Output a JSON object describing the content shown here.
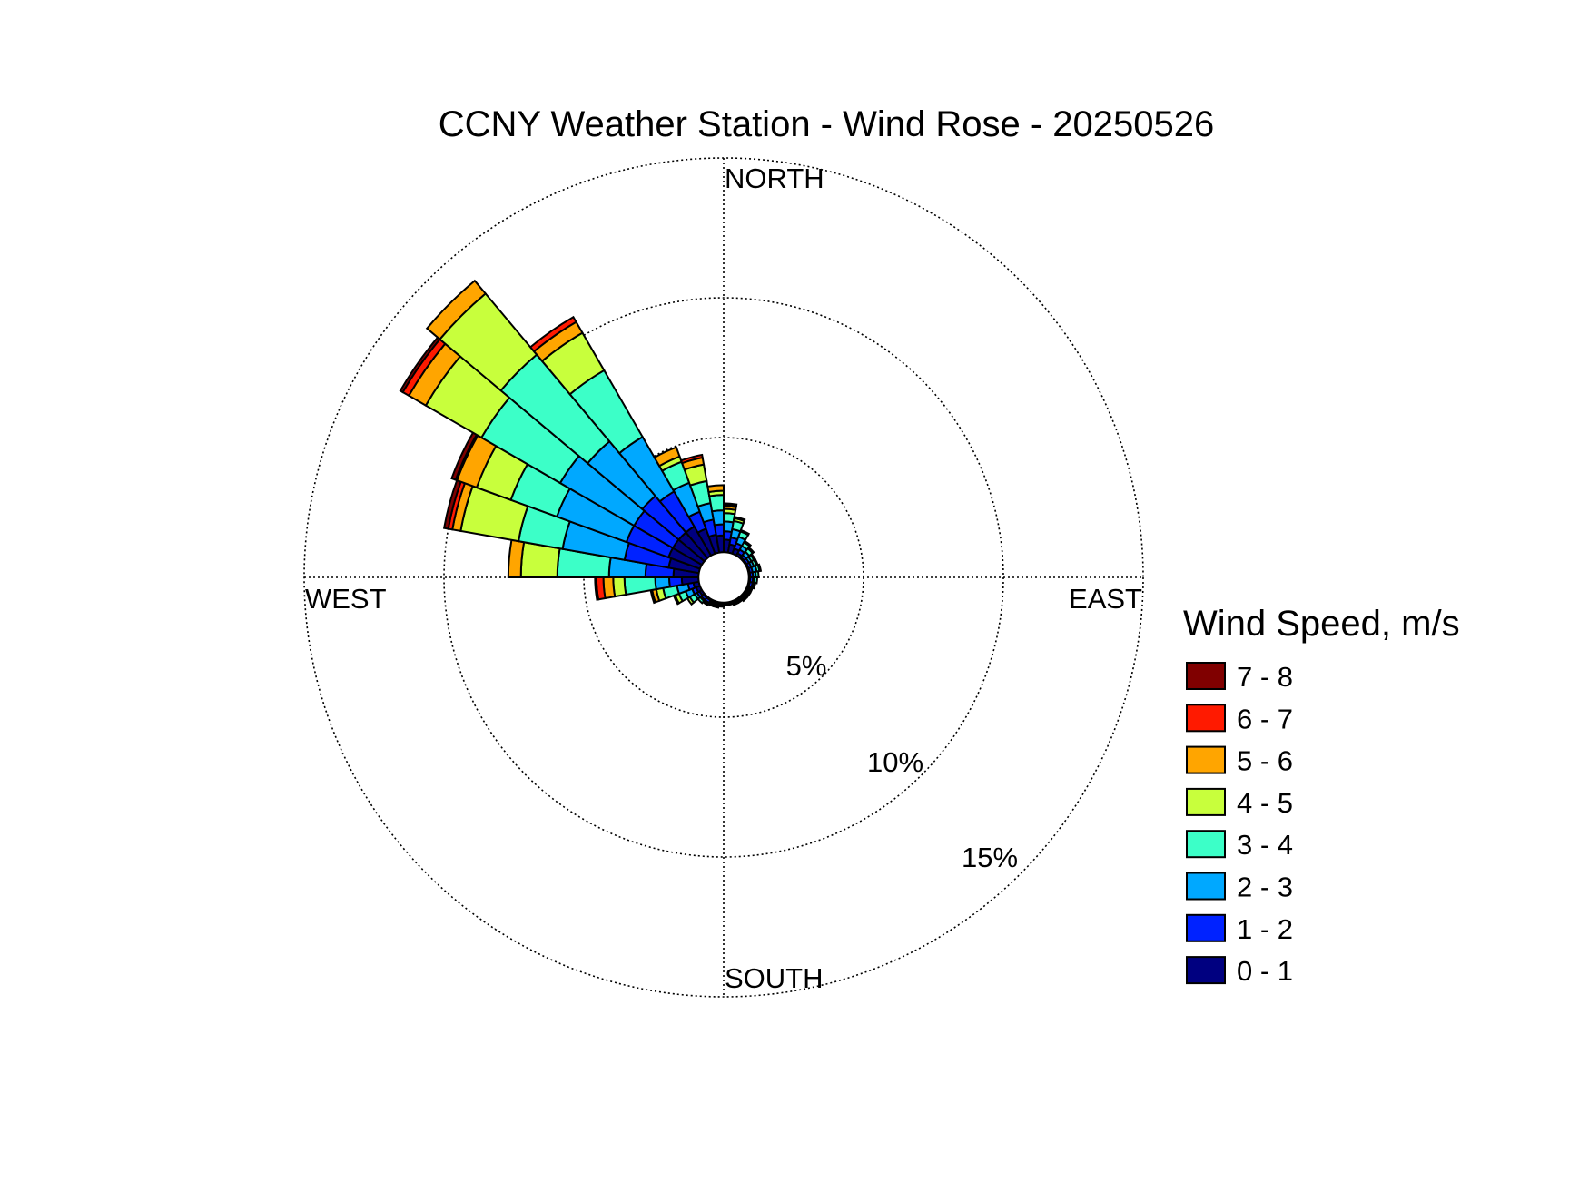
{
  "chart_data": {
    "type": "windrose",
    "title": "CCNY Weather Station - Wind Rose - 20250526",
    "direction_labels": {
      "north": "NORTH",
      "east": "EAST",
      "south": "SOUTH",
      "west": "WEST"
    },
    "ring_labels": [
      "5%",
      "10%",
      "15%"
    ],
    "rings": [
      5,
      10,
      15
    ],
    "rmax": 15,
    "legend": {
      "title": "Wind Speed, m/s",
      "placement": "right",
      "entries": [
        {
          "label": "7 - 8",
          "color": "#800000"
        },
        {
          "label": "6 - 7",
          "color": "#ff1a00"
        },
        {
          "label": "5 - 6",
          "color": "#ffa500"
        },
        {
          "label": "4 - 5",
          "color": "#c8ff3c"
        },
        {
          "label": "3 - 4",
          "color": "#3cffc8"
        },
        {
          "label": "2 - 3",
          "color": "#00a8ff"
        },
        {
          "label": "1 - 2",
          "color": "#0022ff"
        },
        {
          "label": "0 - 1",
          "color": "#000080"
        }
      ]
    },
    "bins": [
      "0 - 1",
      "1 - 2",
      "2 - 3",
      "3 - 4",
      "4 - 5",
      "5 - 6",
      "6 - 7",
      "7 - 8"
    ],
    "colors": [
      "#000080",
      "#0022ff",
      "#00a8ff",
      "#3cffc8",
      "#c8ff3c",
      "#ffa500",
      "#ff1a00",
      "#800000"
    ],
    "sector_width_deg": 10,
    "calm_percent": 0.9,
    "sectors": [
      {
        "direction": 5,
        "cumulative": [
          1.35,
          1.65,
          2.0,
          2.3,
          2.45,
          2.55,
          2.6,
          2.65
        ]
      },
      {
        "direction": 15,
        "cumulative": [
          1.2,
          1.45,
          1.75,
          2.05,
          2.15,
          2.2,
          2.2,
          2.2
        ]
      },
      {
        "direction": 25,
        "cumulative": [
          1.1,
          1.3,
          1.55,
          1.75,
          1.8,
          1.8,
          1.8,
          1.8
        ]
      },
      {
        "direction": 35,
        "cumulative": [
          1.0,
          1.15,
          1.3,
          1.45,
          1.5,
          1.5,
          1.5,
          1.5
        ]
      },
      {
        "direction": 45,
        "cumulative": [
          0.95,
          1.05,
          1.2,
          1.35,
          1.4,
          1.4,
          1.4,
          1.4
        ]
      },
      {
        "direction": 55,
        "cumulative": [
          0.95,
          1.05,
          1.15,
          1.25,
          1.3,
          1.3,
          1.3,
          1.3
        ]
      },
      {
        "direction": 65,
        "cumulative": [
          0.95,
          1.05,
          1.15,
          1.25,
          1.3,
          1.3,
          1.3,
          1.3
        ]
      },
      {
        "direction": 75,
        "cumulative": [
          0.95,
          1.05,
          1.2,
          1.3,
          1.35,
          1.35,
          1.35,
          1.35
        ]
      },
      {
        "direction": 85,
        "cumulative": [
          0.95,
          1.05,
          1.15,
          1.25,
          1.25,
          1.25,
          1.25,
          1.25
        ]
      },
      {
        "direction": 95,
        "cumulative": [
          0.95,
          1.05,
          1.1,
          1.2,
          1.2,
          1.2,
          1.2,
          1.2
        ]
      },
      {
        "direction": 105,
        "cumulative": [
          0.95,
          1.05,
          1.1,
          1.15,
          1.15,
          1.15,
          1.15,
          1.15
        ]
      },
      {
        "direction": 115,
        "cumulative": [
          0.95,
          1.0,
          1.05,
          1.1,
          1.1,
          1.1,
          1.1,
          1.1
        ]
      },
      {
        "direction": 125,
        "cumulative": [
          0.95,
          1.0,
          1.05,
          1.1,
          1.1,
          1.1,
          1.1,
          1.1
        ]
      },
      {
        "direction": 135,
        "cumulative": [
          0.95,
          1.0,
          1.05,
          1.1,
          1.1,
          1.1,
          1.1,
          1.1
        ]
      },
      {
        "direction": 145,
        "cumulative": [
          0.95,
          1.0,
          1.05,
          1.05,
          1.05,
          1.05,
          1.05,
          1.05
        ]
      },
      {
        "direction": 155,
        "cumulative": [
          0.95,
          1.0,
          1.05,
          1.05,
          1.05,
          1.05,
          1.05,
          1.05
        ]
      },
      {
        "direction": 165,
        "cumulative": [
          0.95,
          1.0,
          1.0,
          1.0,
          1.0,
          1.0,
          1.0,
          1.0
        ]
      },
      {
        "direction": 175,
        "cumulative": [
          0.95,
          1.0,
          1.0,
          1.0,
          1.0,
          1.0,
          1.0,
          1.0
        ]
      },
      {
        "direction": 185,
        "cumulative": [
          0.95,
          1.0,
          1.05,
          1.05,
          1.05,
          1.05,
          1.05,
          1.05
        ]
      },
      {
        "direction": 195,
        "cumulative": [
          0.95,
          1.0,
          1.05,
          1.1,
          1.1,
          1.1,
          1.1,
          1.1
        ]
      },
      {
        "direction": 205,
        "cumulative": [
          0.95,
          1.0,
          1.05,
          1.1,
          1.1,
          1.1,
          1.1,
          1.1
        ]
      },
      {
        "direction": 215,
        "cumulative": [
          0.95,
          1.05,
          1.1,
          1.15,
          1.15,
          1.15,
          1.15,
          1.15
        ]
      },
      {
        "direction": 225,
        "cumulative": [
          0.95,
          1.05,
          1.1,
          1.2,
          1.2,
          1.2,
          1.2,
          1.2
        ]
      },
      {
        "direction": 235,
        "cumulative": [
          1.0,
          1.1,
          1.2,
          1.4,
          1.5,
          1.5,
          1.5,
          1.5
        ]
      },
      {
        "direction": 245,
        "cumulative": [
          1.05,
          1.2,
          1.45,
          1.7,
          1.85,
          1.9,
          1.9,
          1.9
        ]
      },
      {
        "direction": 255,
        "cumulative": [
          1.1,
          1.3,
          1.7,
          2.2,
          2.45,
          2.6,
          2.65,
          2.65
        ]
      },
      {
        "direction": 265,
        "cumulative": [
          1.5,
          1.95,
          2.45,
          3.55,
          3.95,
          4.3,
          4.55,
          4.6
        ]
      },
      {
        "direction": 275,
        "cumulative": [
          1.8,
          2.8,
          4.1,
          5.95,
          7.25,
          7.7,
          7.7,
          7.7
        ]
      },
      {
        "direction": 285,
        "cumulative": [
          2.0,
          3.6,
          5.85,
          7.45,
          9.55,
          9.85,
          10.0,
          10.15
        ]
      },
      {
        "direction": 295,
        "cumulative": [
          2.1,
          3.7,
          6.35,
          8.1,
          9.4,
          10.15,
          10.2,
          10.35
        ]
      },
      {
        "direction": 305,
        "cumulative": [
          2.1,
          3.7,
          6.75,
          10.0,
          12.3,
          13.0,
          13.25,
          13.35
        ]
      },
      {
        "direction": 315,
        "cumulative": [
          2.1,
          3.8,
          6.35,
          10.4,
          13.25,
          13.85,
          13.85,
          13.85
        ]
      },
      {
        "direction": 325,
        "cumulative": [
          2.1,
          3.55,
          5.8,
          8.55,
          10.1,
          10.55,
          10.75,
          10.75
        ]
      },
      {
        "direction": 335,
        "cumulative": [
          1.85,
          2.5,
          3.6,
          4.4,
          4.6,
          4.95,
          4.95,
          4.95
        ]
      },
      {
        "direction": 345,
        "cumulative": [
          1.55,
          2.1,
          2.7,
          3.5,
          4.1,
          4.35,
          4.45,
          4.45
        ]
      },
      {
        "direction": 355,
        "cumulative": [
          1.5,
          1.9,
          2.4,
          2.95,
          3.1,
          3.3,
          3.3,
          3.3
        ]
      }
    ]
  }
}
